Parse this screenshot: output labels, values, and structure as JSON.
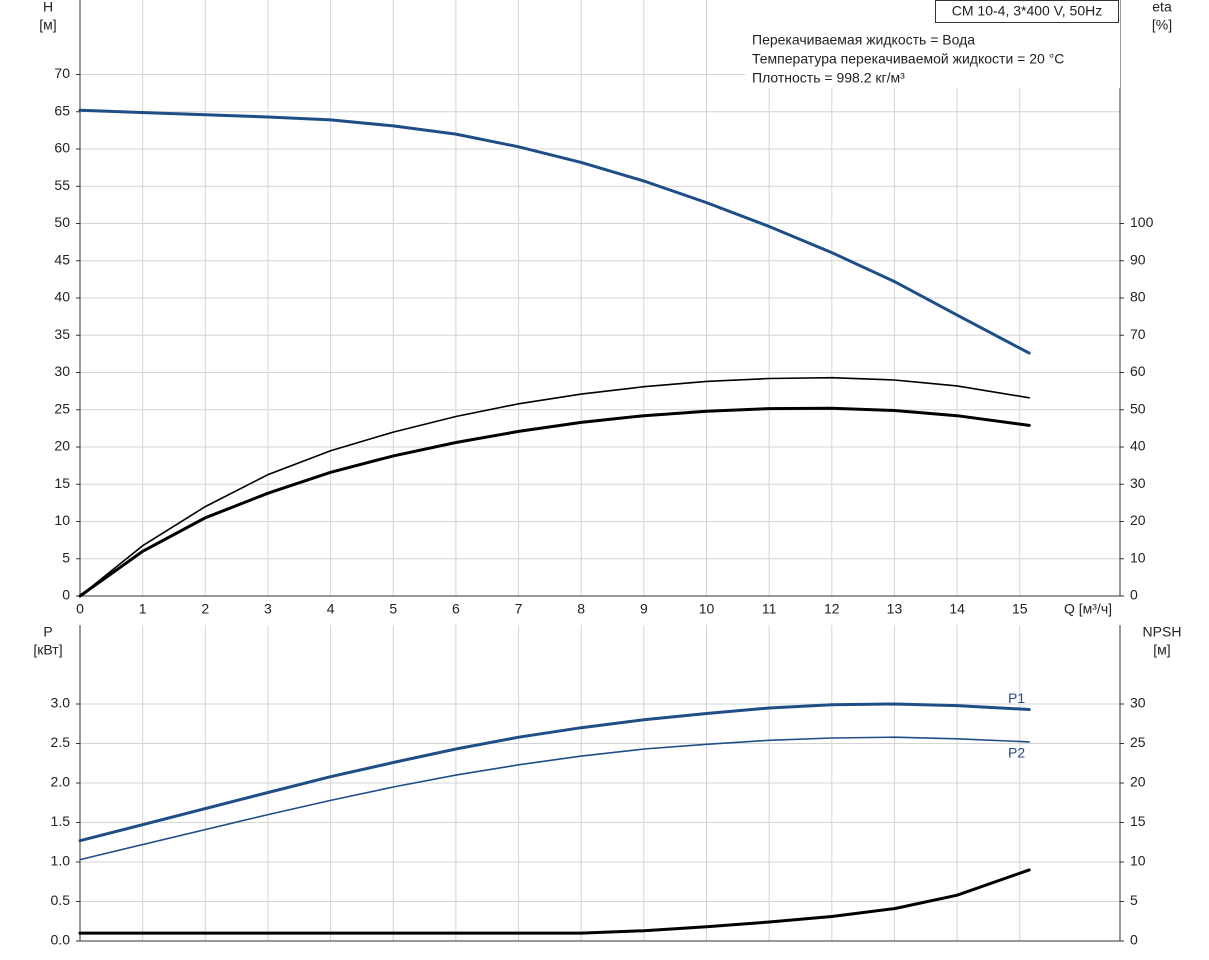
{
  "chart_data": [
    {
      "type": "line",
      "title": "CM 10-4, 3*400 V, 50Hz",
      "annotations": [
        "Перекачиваемая жидкость = Вода",
        "Температура перекачиваемой жидкости = 20 °C",
        "Плотность = 998.2 кг/м³"
      ],
      "xlabel": "Q [м³/ч]",
      "ylabel": [
        "H",
        "[м]"
      ],
      "y2label": [
        "eta",
        "[%]"
      ],
      "xlim": [
        0,
        16.6
      ],
      "ylim": [
        0,
        80
      ],
      "y2lim": [
        0,
        160
      ],
      "xticks": [
        0,
        1,
        2,
        3,
        4,
        5,
        6,
        7,
        8,
        9,
        10,
        11,
        12,
        13,
        14,
        15
      ],
      "yticks": [
        0,
        5,
        10,
        15,
        20,
        25,
        30,
        35,
        40,
        45,
        50,
        55,
        60,
        65,
        70
      ],
      "y2ticks": [
        0,
        10,
        20,
        30,
        40,
        50,
        60,
        70,
        80,
        90,
        100
      ],
      "grid": true,
      "series": [
        {
          "color": "#1f4e87",
          "line_width": 3,
          "axis": "y",
          "x": [
            0,
            3,
            4,
            5,
            6,
            7,
            8,
            9,
            10,
            11,
            12,
            13,
            14,
            15.15
          ],
          "values": [
            65.2,
            64.3,
            63.9,
            63.1,
            62,
            60.3,
            58.2,
            55.7,
            52.8,
            49.6,
            46.1,
            42.2,
            37.7,
            32.6
          ]
        },
        {
          "color": "#000000",
          "line_width": 1.6,
          "axis": "y2",
          "x": [
            0,
            1,
            2,
            3,
            4,
            5,
            6,
            7,
            8,
            9,
            10,
            11,
            12,
            13,
            14,
            15.15
          ],
          "values": [
            0,
            13.5,
            24,
            32.6,
            39,
            44,
            48.2,
            51.6,
            54.2,
            56.2,
            57.6,
            58.4,
            58.6,
            58,
            56.4,
            53.2
          ]
        },
        {
          "color": "#000000",
          "line_width": 3,
          "axis": "y2",
          "x": [
            0,
            1,
            2,
            3,
            4,
            5,
            6,
            7,
            8,
            9,
            10,
            11,
            12,
            13,
            14,
            15.15
          ],
          "values": [
            0,
            12,
            21,
            27.6,
            33.2,
            37.6,
            41.2,
            44.2,
            46.6,
            48.4,
            49.6,
            50.3,
            50.4,
            49.8,
            48.4,
            45.8
          ]
        }
      ]
    },
    {
      "type": "line",
      "ylabel": [
        "P",
        "[кВт]"
      ],
      "y2label": [
        "NPSH",
        "[м]"
      ],
      "xlim": [
        0,
        16.6
      ],
      "ylim": [
        0,
        4
      ],
      "y2lim": [
        0,
        40
      ],
      "yticks": [
        {
          "value": 0,
          "label": "0.0"
        },
        0.5,
        {
          "value": 1,
          "label": "1.0"
        },
        1.5,
        {
          "value": 2,
          "label": "2.0"
        },
        2.5,
        {
          "value": 3,
          "label": "3.0"
        }
      ],
      "y2ticks": [
        0,
        5,
        10,
        15,
        20,
        25,
        30
      ],
      "grid": true,
      "series": [
        {
          "name": "P1",
          "label_pos": "above",
          "color": "#1f4e87",
          "line_width": 3,
          "axis": "y",
          "x": [
            0,
            3,
            4,
            5,
            6,
            7,
            8,
            9,
            10,
            11,
            12,
            13,
            14,
            15.15
          ],
          "values": [
            1.27,
            1.88,
            2.08,
            2.26,
            2.43,
            2.58,
            2.7,
            2.8,
            2.88,
            2.95,
            2.99,
            3,
            2.98,
            2.93
          ]
        },
        {
          "name": "P2",
          "label_pos": "below",
          "color": "#1f4e87",
          "line_width": 1.6,
          "axis": "y",
          "x": [
            0,
            3,
            4,
            5,
            6,
            7,
            8,
            9,
            10,
            11,
            12,
            13,
            14,
            15.15
          ],
          "values": [
            1.03,
            1.6,
            1.78,
            1.95,
            2.1,
            2.23,
            2.34,
            2.43,
            2.49,
            2.54,
            2.57,
            2.58,
            2.56,
            2.52
          ]
        },
        {
          "color": "#000000",
          "line_width": 3,
          "axis": "y2",
          "x": [
            0,
            3,
            5,
            7,
            8,
            9,
            10,
            11,
            12,
            13,
            14,
            15.15
          ],
          "values": [
            1,
            1,
            1,
            1,
            1,
            1.3,
            1.8,
            2.4,
            3.1,
            4.1,
            5.8,
            9
          ]
        }
      ]
    }
  ]
}
